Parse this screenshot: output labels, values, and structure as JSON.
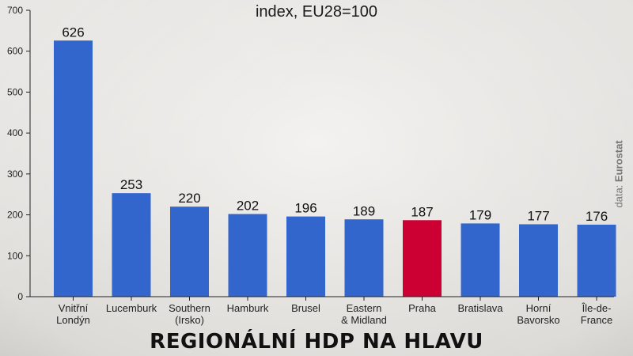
{
  "chart_data": {
    "type": "bar",
    "title": "REGIONÁLNÍ HDP NA HLAVU",
    "subtitle": "index, EU28=100",
    "source_prefix": "data: ",
    "source_name": "Eurostat",
    "categories": [
      [
        "Vnitřní",
        "Londýn"
      ],
      [
        "Lucemburk"
      ],
      [
        "Southern",
        "(Irsko)"
      ],
      [
        "Hamburk"
      ],
      [
        "Brusel"
      ],
      [
        "Eastern",
        "& Midland"
      ],
      [
        "Praha"
      ],
      [
        "Bratislava"
      ],
      [
        "Horní",
        "Bavorsko"
      ],
      [
        "Île-de-",
        "France"
      ]
    ],
    "values": [
      626,
      253,
      220,
      202,
      196,
      189,
      187,
      179,
      177,
      176
    ],
    "highlight_index": 6,
    "ylim": [
      0,
      700
    ],
    "yticks": [
      0,
      100,
      200,
      300,
      400,
      500,
      600,
      700
    ],
    "colors": {
      "bar": "#3366cc",
      "highlight": "#cc0033",
      "axis": "#222222"
    },
    "grid": false,
    "legend": "none"
  }
}
